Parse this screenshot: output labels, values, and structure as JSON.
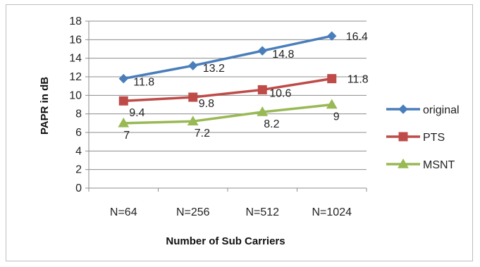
{
  "chart_data": {
    "type": "line",
    "title": "",
    "xlabel": "Number of Sub Carriers",
    "ylabel": "PAPR in dB",
    "categories": [
      "N=64",
      "N=256",
      "N=512",
      "N=1024"
    ],
    "ylim": [
      0,
      18
    ],
    "yticks": [
      0,
      2,
      4,
      6,
      8,
      10,
      12,
      14,
      16,
      18
    ],
    "grid": true,
    "legend_position": "right",
    "series": [
      {
        "name": "original",
        "values": [
          11.8,
          13.2,
          14.8,
          16.4
        ],
        "labels": [
          "11.8",
          "13.2",
          "14.8",
          "16.4"
        ],
        "color": "#4a7ebb",
        "marker": "diamond"
      },
      {
        "name": "PTS",
        "values": [
          9.4,
          9.8,
          10.6,
          11.8
        ],
        "labels": [
          "9.4",
          "9.8",
          "10.6",
          "11.8"
        ],
        "color": "#be4b48",
        "marker": "square"
      },
      {
        "name": "MSNT",
        "values": [
          7,
          7.2,
          8.2,
          9
        ],
        "labels": [
          "7",
          "7.2",
          "8.2",
          "9"
        ],
        "color": "#98b954",
        "marker": "triangle"
      }
    ]
  }
}
